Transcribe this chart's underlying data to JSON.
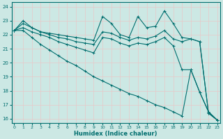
{
  "xlabel": "Humidex (Indice chaleur)",
  "bg_color": "#cce8e4",
  "grid_color": "#e8c8c8",
  "line_color": "#006e6e",
  "xlim": [
    0,
    23
  ],
  "ylim": [
    15.7,
    24.3
  ],
  "yticks": [
    16,
    17,
    18,
    19,
    20,
    21,
    22,
    23,
    24
  ],
  "xticks": [
    0,
    1,
    2,
    3,
    4,
    5,
    6,
    7,
    8,
    9,
    10,
    11,
    12,
    13,
    14,
    15,
    16,
    17,
    18,
    19,
    20,
    21,
    22,
    23
  ],
  "series": [
    [
      22.3,
      23.0,
      22.5,
      22.2,
      22.1,
      22.0,
      21.9,
      21.8,
      21.7,
      21.6,
      23.3,
      22.8,
      22.0,
      21.8,
      23.3,
      22.5,
      22.6,
      23.7,
      22.8,
      21.8,
      21.7,
      21.5,
      16.4,
      15.9
    ],
    [
      22.3,
      22.8,
      22.5,
      22.2,
      22.0,
      21.8,
      21.7,
      21.5,
      21.4,
      21.3,
      22.2,
      22.1,
      21.8,
      21.6,
      21.8,
      21.7,
      21.9,
      22.3,
      21.7,
      21.5,
      21.7,
      21.5,
      16.4,
      15.9
    ],
    [
      22.3,
      22.5,
      22.2,
      22.0,
      21.8,
      21.5,
      21.3,
      21.1,
      20.9,
      20.7,
      21.8,
      21.7,
      21.4,
      21.2,
      21.4,
      21.3,
      21.5,
      21.8,
      21.2,
      19.5,
      19.5,
      17.9,
      16.5,
      15.9
    ],
    [
      22.3,
      22.3,
      21.8,
      21.3,
      20.9,
      20.5,
      20.1,
      19.8,
      19.4,
      19.0,
      18.7,
      18.4,
      18.1,
      17.8,
      17.6,
      17.3,
      17.0,
      16.8,
      16.5,
      16.2,
      19.5,
      17.9,
      16.5,
      15.9
    ]
  ]
}
